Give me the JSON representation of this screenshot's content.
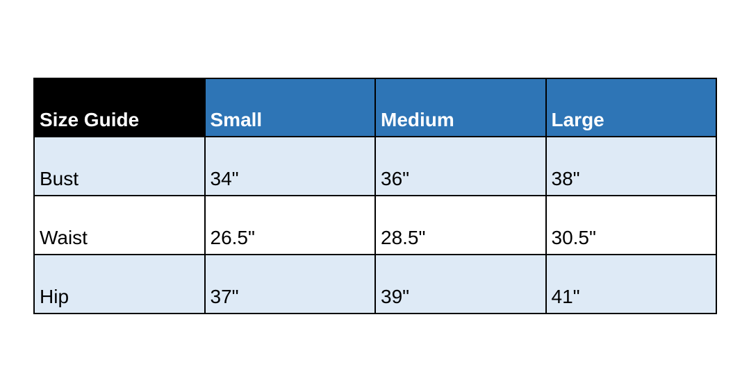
{
  "chart_data": {
    "type": "table",
    "title": "Size Guide",
    "columns": [
      "Small",
      "Medium",
      "Large"
    ],
    "rows": [
      {
        "label": "Bust",
        "values": [
          "34\"",
          "36\"",
          "38\""
        ]
      },
      {
        "label": "Waist",
        "values": [
          "26.5\"",
          "28.5\"",
          "30.5\""
        ]
      },
      {
        "label": "Hip",
        "values": [
          "37\"",
          "39\"",
          "41\""
        ]
      }
    ],
    "colors": {
      "title_header_bg": "#000000",
      "size_header_bg": "#2e75b6",
      "header_text": "#ffffff",
      "row_alt_bg": "#deeaf6",
      "row_plain_bg": "#ffffff",
      "body_text": "#000000",
      "border": "#000000"
    }
  }
}
